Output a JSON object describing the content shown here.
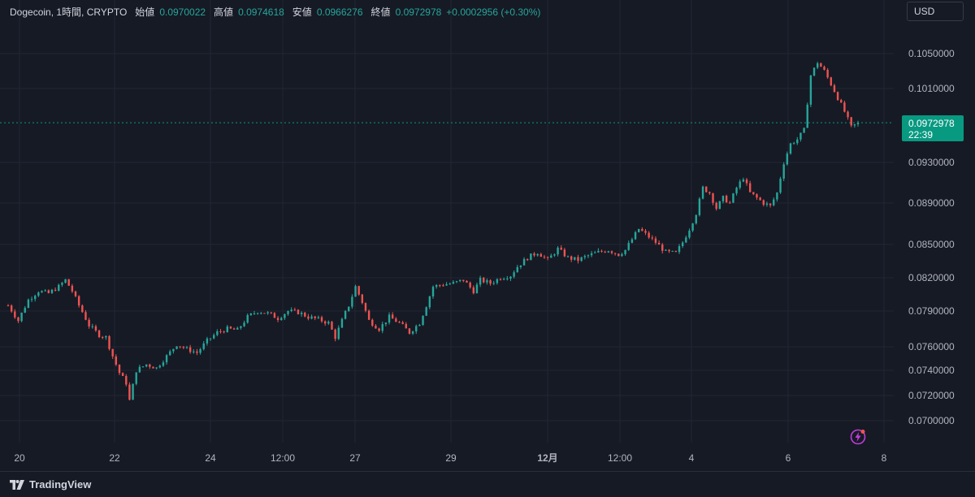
{
  "legend": {
    "symbol": "Dogecoin, 1時間, CRYPTO",
    "open_label": "始値",
    "open": "0.0970022",
    "high_label": "高値",
    "high": "0.0974618",
    "low_label": "安値",
    "low": "0.0966276",
    "close_label": "終値",
    "close": "0.0972978",
    "change": "+0.0002956 (+0.30%)"
  },
  "currency": "USD",
  "price_tag": {
    "price": "0.0972978",
    "countdown": "22:39"
  },
  "brand": "TradingView",
  "colors": {
    "up": "#26a69a",
    "down": "#ef5350",
    "bg": "#161a25",
    "grid": "#232632",
    "tag": "#089981"
  },
  "chart_data": {
    "type": "candlestick",
    "y_ticks": [
      0.105,
      0.101,
      0.093,
      0.089,
      0.085,
      0.082,
      0.079,
      0.076,
      0.074,
      0.072,
      0.07
    ],
    "y_tick_labels": [
      "0.1050000",
      "0.1010000",
      "0.0930000",
      "0.0890000",
      "0.0850000",
      "0.0820000",
      "0.0790000",
      "0.0760000",
      "0.0740000",
      "0.0720000",
      "0.0700000"
    ],
    "x_tick_labels": [
      "20",
      "22",
      "24",
      "12:00",
      "27",
      "29",
      "12月",
      "12:00",
      "4",
      "6",
      "8"
    ],
    "last_price": 0.0972978,
    "series": [
      [
        0,
        0.0795
      ],
      [
        3,
        0.0782
      ],
      [
        6,
        0.08
      ],
      [
        9,
        0.0808
      ],
      [
        12,
        0.0806
      ],
      [
        15,
        0.0812
      ],
      [
        17,
        0.0818
      ],
      [
        19,
        0.0808
      ],
      [
        21,
        0.0795
      ],
      [
        24,
        0.0778
      ],
      [
        27,
        0.077
      ],
      [
        29,
        0.0768
      ],
      [
        31,
        0.0752
      ],
      [
        33,
        0.0738
      ],
      [
        35,
        0.073
      ],
      [
        36,
        0.0716
      ],
      [
        38,
        0.074
      ],
      [
        41,
        0.0745
      ],
      [
        44,
        0.0742
      ],
      [
        47,
        0.0752
      ],
      [
        50,
        0.0762
      ],
      [
        53,
        0.0758
      ],
      [
        56,
        0.0755
      ],
      [
        59,
        0.0765
      ],
      [
        62,
        0.0772
      ],
      [
        65,
        0.0775
      ],
      [
        68,
        0.0774
      ],
      [
        71,
        0.0785
      ],
      [
        74,
        0.079
      ],
      [
        77,
        0.0788
      ],
      [
        80,
        0.0784
      ],
      [
        83,
        0.079
      ],
      [
        86,
        0.0789
      ],
      [
        89,
        0.0785
      ],
      [
        92,
        0.0783
      ],
      [
        95,
        0.078
      ],
      [
        97,
        0.0768
      ],
      [
        99,
        0.0782
      ],
      [
        101,
        0.0795
      ],
      [
        103,
        0.0812
      ],
      [
        105,
        0.0798
      ],
      [
        107,
        0.0782
      ],
      [
        110,
        0.0775
      ],
      [
        113,
        0.0785
      ],
      [
        116,
        0.078
      ],
      [
        119,
        0.0772
      ],
      [
        122,
        0.078
      ],
      [
        124,
        0.0795
      ],
      [
        126,
        0.0812
      ],
      [
        129,
        0.0814
      ],
      [
        132,
        0.0815
      ],
      [
        135,
        0.0818
      ],
      [
        138,
        0.0808
      ],
      [
        140,
        0.0818
      ],
      [
        143,
        0.0815
      ],
      [
        146,
        0.082
      ],
      [
        149,
        0.0822
      ],
      [
        151,
        0.083
      ],
      [
        154,
        0.0838
      ],
      [
        157,
        0.0843
      ],
      [
        160,
        0.0836
      ],
      [
        163,
        0.0846
      ],
      [
        166,
        0.0838
      ],
      [
        169,
        0.0836
      ],
      [
        172,
        0.084
      ],
      [
        175,
        0.0843
      ],
      [
        178,
        0.0845
      ],
      [
        181,
        0.0841
      ],
      [
        183,
        0.0845
      ],
      [
        185,
        0.0855
      ],
      [
        187,
        0.0865
      ],
      [
        189,
        0.086
      ],
      [
        192,
        0.0852
      ],
      [
        195,
        0.0843
      ],
      [
        198,
        0.0842
      ],
      [
        200,
        0.0852
      ],
      [
        202,
        0.0865
      ],
      [
        204,
        0.088
      ],
      [
        206,
        0.0905
      ],
      [
        208,
        0.09
      ],
      [
        210,
        0.0885
      ],
      [
        212,
        0.0895
      ],
      [
        214,
        0.089
      ],
      [
        216,
        0.0905
      ],
      [
        218,
        0.0915
      ],
      [
        220,
        0.09
      ],
      [
        222,
        0.0895
      ],
      [
        224,
        0.089
      ],
      [
        226,
        0.0887
      ],
      [
        228,
        0.09
      ],
      [
        230,
        0.093
      ],
      [
        232,
        0.095
      ],
      [
        234,
        0.0955
      ],
      [
        236,
        0.0965
      ],
      [
        238,
        0.1025
      ],
      [
        240,
        0.104
      ],
      [
        242,
        0.103
      ],
      [
        244,
        0.1015
      ],
      [
        246,
        0.1
      ],
      [
        248,
        0.0985
      ],
      [
        250,
        0.0968
      ],
      [
        252,
        0.0973
      ]
    ]
  }
}
